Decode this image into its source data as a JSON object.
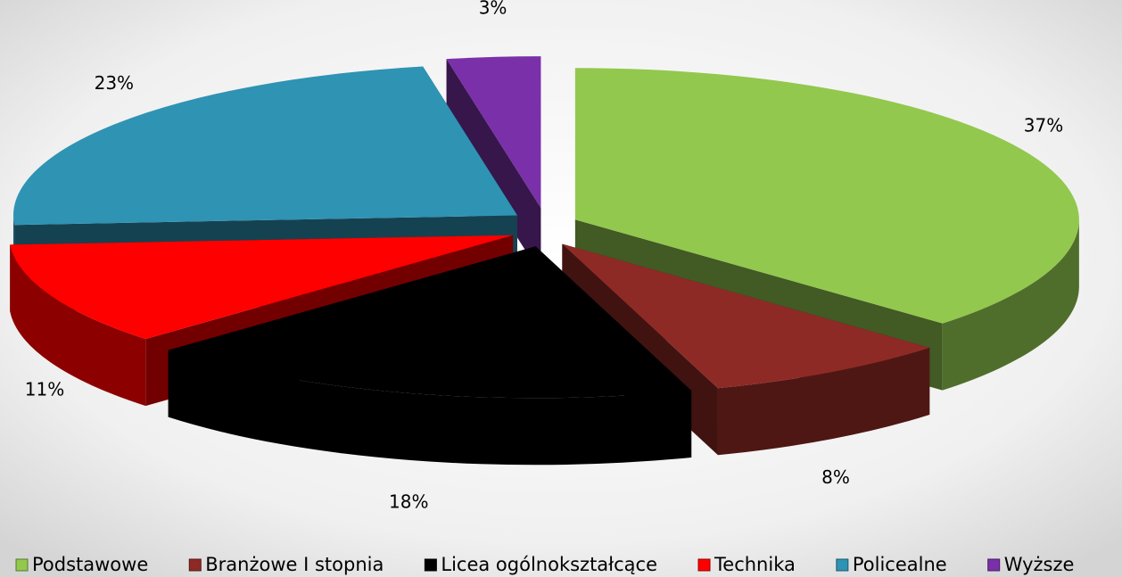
{
  "chart_data": {
    "type": "pie",
    "categories": [
      "Podstawowe",
      "Branżowe I stopnia",
      "Licea ogólnokształcące",
      "Technika",
      "Policealne",
      "Wyższe"
    ],
    "values": [
      37,
      8,
      18,
      11,
      23,
      3
    ],
    "value_labels": [
      "37%",
      "8%",
      "18%",
      "11%",
      "23%",
      "3%"
    ],
    "colors": [
      "#92c84e",
      "#8e2a25",
      "#000000",
      "#ff0000",
      "#2f93b4",
      "#7a30a8"
    ],
    "legend": "bottom"
  }
}
